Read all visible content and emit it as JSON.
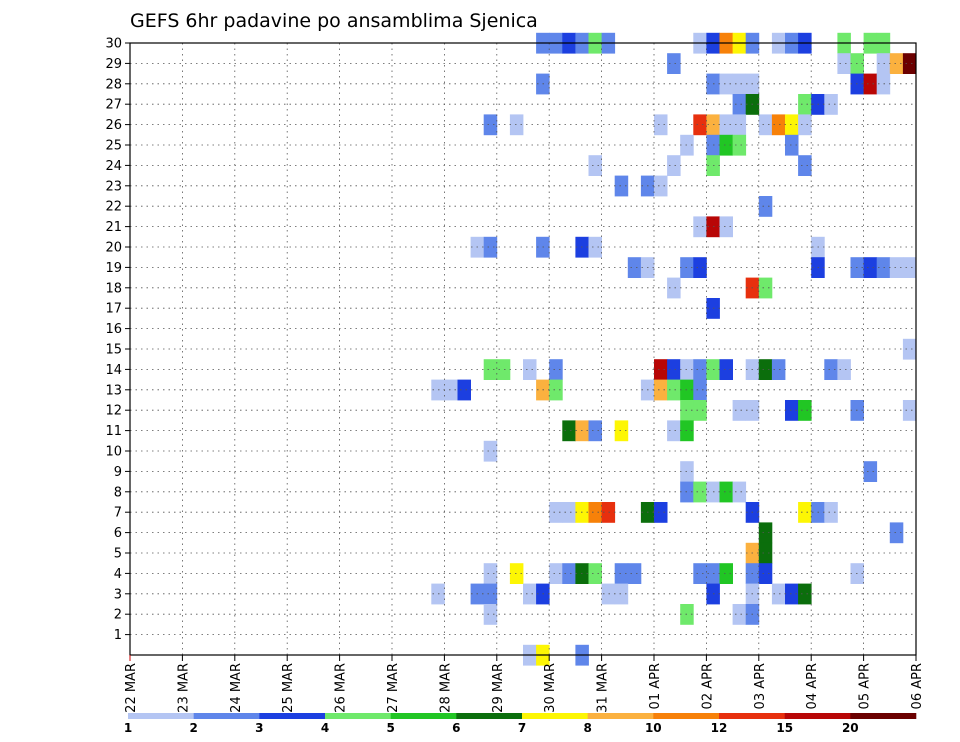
{
  "chart_data": {
    "type": "heatmap",
    "title": "GEFS 6hr padavine po ansamblima Sjenica",
    "x_tick_labels": [
      "22 MAR",
      "23 MAR",
      "24 MAR",
      "25 MAR",
      "26 MAR",
      "27 MAR",
      "28 MAR",
      "29 MAR",
      "30 MAR",
      "31 MAR",
      "01 APR",
      "02 APR",
      "03 APR",
      "04 APR",
      "05 APR",
      "06 APR"
    ],
    "y_tick_labels": [
      "1",
      "2",
      "3",
      "4",
      "5",
      "6",
      "7",
      "8",
      "9",
      "10",
      "11",
      "12",
      "13",
      "14",
      "15",
      "16",
      "17",
      "18",
      "19",
      "20",
      "21",
      "22",
      "23",
      "24",
      "25",
      "26",
      "27",
      "28",
      "29",
      "30"
    ],
    "grid": true,
    "legend_position": "bottom",
    "colorbar": {
      "labels": [
        "1",
        "2",
        "3",
        "4",
        "5",
        "6",
        "7",
        "8",
        "10",
        "12",
        "15",
        "20"
      ],
      "colors": [
        "#b4c5f3",
        "#5f86ea",
        "#1c3fe0",
        "#6fe96b",
        "#21c624",
        "#0b6e0c",
        "#fdf604",
        "#fbb13f",
        "#f78109",
        "#e7300e",
        "#b80606",
        "#6b0000"
      ]
    },
    "cells_note_levels": "each cell: [member, step_index_from_22MAR_00UTC_in_6h_steps, color_level_index]",
    "cells": [
      [
        30,
        31,
        1
      ],
      [
        30,
        32,
        1
      ],
      [
        30,
        33,
        2
      ],
      [
        30,
        34,
        1
      ],
      [
        30,
        35,
        3
      ],
      [
        30,
        36,
        1
      ],
      [
        30,
        43,
        0
      ],
      [
        30,
        44,
        2
      ],
      [
        30,
        45,
        8
      ],
      [
        30,
        46,
        6
      ],
      [
        30,
        47,
        1
      ],
      [
        30,
        49,
        0
      ],
      [
        30,
        50,
        1
      ],
      [
        30,
        51,
        2
      ],
      [
        30,
        54,
        3
      ],
      [
        30,
        56,
        3
      ],
      [
        30,
        57,
        3
      ],
      [
        29,
        41,
        1
      ],
      [
        29,
        54,
        0
      ],
      [
        29,
        55,
        3
      ],
      [
        29,
        57,
        0
      ],
      [
        29,
        58,
        7
      ],
      [
        29,
        59,
        11
      ],
      [
        29,
        60,
        7
      ],
      [
        29,
        61,
        3
      ],
      [
        28,
        31,
        1
      ],
      [
        28,
        44,
        1
      ],
      [
        28,
        45,
        0
      ],
      [
        28,
        46,
        0
      ],
      [
        28,
        47,
        0
      ],
      [
        28,
        55,
        2
      ],
      [
        28,
        56,
        10
      ],
      [
        28,
        57,
        0
      ],
      [
        28,
        61,
        8
      ],
      [
        27,
        46,
        1
      ],
      [
        27,
        47,
        5
      ],
      [
        27,
        51,
        3
      ],
      [
        27,
        52,
        2
      ],
      [
        27,
        53,
        0
      ],
      [
        26,
        27,
        1
      ],
      [
        26,
        29,
        0
      ],
      [
        26,
        40,
        0
      ],
      [
        26,
        43,
        9
      ],
      [
        26,
        44,
        7
      ],
      [
        26,
        45,
        0
      ],
      [
        26,
        46,
        0
      ],
      [
        26,
        48,
        0
      ],
      [
        26,
        49,
        8
      ],
      [
        26,
        50,
        6
      ],
      [
        26,
        51,
        0
      ],
      [
        25,
        42,
        0
      ],
      [
        25,
        44,
        1
      ],
      [
        25,
        45,
        4
      ],
      [
        25,
        46,
        3
      ],
      [
        25,
        50,
        1
      ],
      [
        24,
        35,
        0
      ],
      [
        24,
        41,
        0
      ],
      [
        24,
        44,
        3
      ],
      [
        24,
        51,
        1
      ],
      [
        23,
        37,
        1
      ],
      [
        23,
        39,
        1
      ],
      [
        23,
        40,
        0
      ],
      [
        22,
        48,
        1
      ],
      [
        21,
        43,
        0
      ],
      [
        21,
        44,
        10
      ],
      [
        21,
        45,
        0
      ],
      [
        20,
        26,
        0
      ],
      [
        20,
        27,
        1
      ],
      [
        20,
        31,
        1
      ],
      [
        20,
        34,
        2
      ],
      [
        20,
        35,
        0
      ],
      [
        20,
        52,
        0
      ],
      [
        19,
        38,
        1
      ],
      [
        19,
        39,
        0
      ],
      [
        19,
        42,
        1
      ],
      [
        19,
        43,
        2
      ],
      [
        19,
        52,
        2
      ],
      [
        19,
        55,
        1
      ],
      [
        19,
        56,
        2
      ],
      [
        19,
        57,
        1
      ],
      [
        19,
        58,
        0
      ],
      [
        19,
        59,
        0
      ],
      [
        18,
        41,
        0
      ],
      [
        18,
        47,
        9
      ],
      [
        18,
        48,
        3
      ],
      [
        17,
        44,
        2
      ],
      [
        15,
        59,
        0
      ],
      [
        14,
        27,
        3
      ],
      [
        14,
        28,
        3
      ],
      [
        14,
        30,
        0
      ],
      [
        14,
        32,
        1
      ],
      [
        14,
        40,
        10
      ],
      [
        14,
        41,
        2
      ],
      [
        14,
        42,
        0
      ],
      [
        14,
        43,
        1
      ],
      [
        14,
        44,
        3
      ],
      [
        14,
        45,
        2
      ],
      [
        14,
        47,
        0
      ],
      [
        14,
        48,
        5
      ],
      [
        14,
        49,
        1
      ],
      [
        14,
        53,
        1
      ],
      [
        14,
        54,
        0
      ],
      [
        13,
        23,
        0
      ],
      [
        13,
        24,
        0
      ],
      [
        13,
        25,
        2
      ],
      [
        13,
        31,
        7
      ],
      [
        13,
        32,
        3
      ],
      [
        13,
        39,
        0
      ],
      [
        13,
        40,
        7
      ],
      [
        13,
        41,
        3
      ],
      [
        13,
        42,
        4
      ],
      [
        13,
        43,
        1
      ],
      [
        12,
        42,
        3
      ],
      [
        12,
        43,
        3
      ],
      [
        12,
        46,
        0
      ],
      [
        12,
        47,
        0
      ],
      [
        12,
        50,
        2
      ],
      [
        12,
        51,
        4
      ],
      [
        12,
        55,
        1
      ],
      [
        12,
        59,
        0
      ],
      [
        11,
        33,
        5
      ],
      [
        11,
        34,
        7
      ],
      [
        11,
        35,
        1
      ],
      [
        11,
        37,
        6
      ],
      [
        11,
        41,
        0
      ],
      [
        11,
        42,
        4
      ],
      [
        10,
        27,
        0
      ],
      [
        9,
        42,
        0
      ],
      [
        9,
        56,
        1
      ],
      [
        8,
        42,
        1
      ],
      [
        8,
        43,
        3
      ],
      [
        8,
        44,
        0
      ],
      [
        8,
        45,
        4
      ],
      [
        8,
        46,
        0
      ],
      [
        7,
        32,
        0
      ],
      [
        7,
        33,
        0
      ],
      [
        7,
        34,
        6
      ],
      [
        7,
        35,
        8
      ],
      [
        7,
        36,
        9
      ],
      [
        7,
        39,
        5
      ],
      [
        7,
        40,
        2
      ],
      [
        7,
        47,
        2
      ],
      [
        7,
        51,
        6
      ],
      [
        7,
        52,
        1
      ],
      [
        7,
        53,
        0
      ],
      [
        6,
        48,
        5
      ],
      [
        6,
        58,
        1
      ],
      [
        5,
        47,
        7
      ],
      [
        5,
        48,
        5
      ],
      [
        4,
        27,
        0
      ],
      [
        4,
        29,
        6
      ],
      [
        4,
        32,
        0
      ],
      [
        4,
        33,
        1
      ],
      [
        4,
        34,
        5
      ],
      [
        4,
        35,
        3
      ],
      [
        4,
        37,
        1
      ],
      [
        4,
        38,
        1
      ],
      [
        4,
        43,
        1
      ],
      [
        4,
        44,
        1
      ],
      [
        4,
        45,
        4
      ],
      [
        4,
        47,
        1
      ],
      [
        4,
        48,
        2
      ],
      [
        4,
        55,
        0
      ],
      [
        3,
        23,
        0
      ],
      [
        3,
        26,
        1
      ],
      [
        3,
        27,
        1
      ],
      [
        3,
        30,
        0
      ],
      [
        3,
        31,
        2
      ],
      [
        3,
        36,
        0
      ],
      [
        3,
        37,
        0
      ],
      [
        3,
        44,
        2
      ],
      [
        3,
        47,
        0
      ],
      [
        3,
        49,
        0
      ],
      [
        3,
        50,
        2
      ],
      [
        3,
        51,
        5
      ],
      [
        2,
        27,
        0
      ],
      [
        2,
        42,
        3
      ],
      [
        2,
        46,
        0
      ],
      [
        2,
        47,
        1
      ],
      [
        0,
        30,
        0
      ],
      [
        0,
        31,
        6
      ],
      [
        0,
        34,
        1
      ]
    ]
  }
}
